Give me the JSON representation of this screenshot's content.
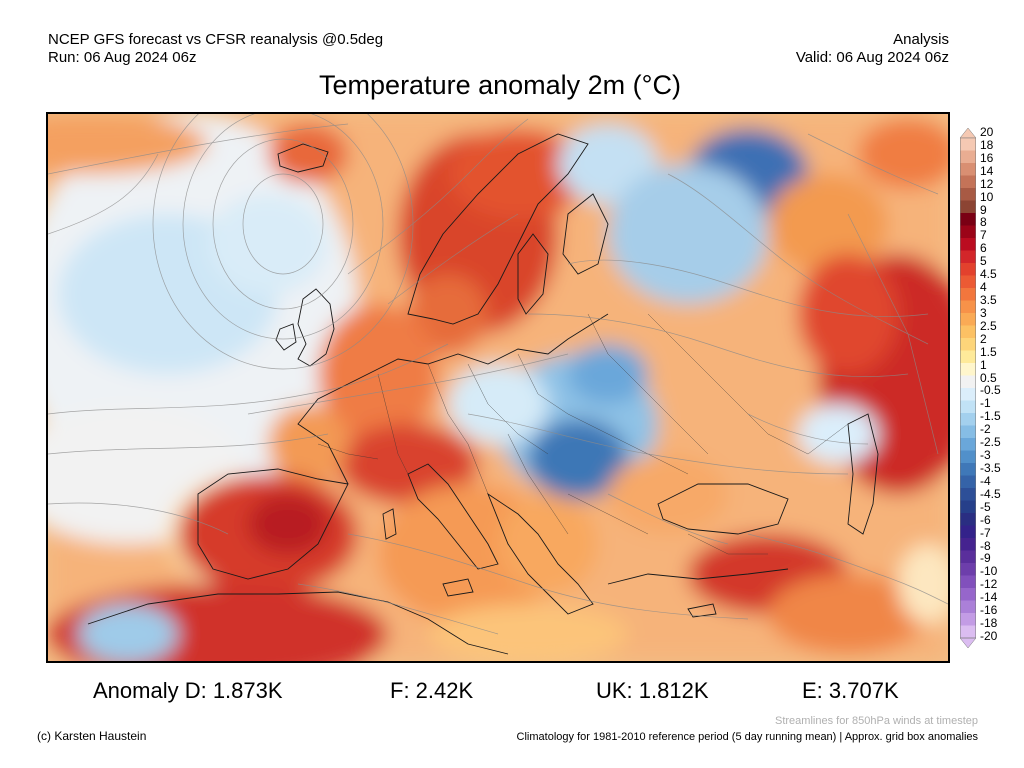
{
  "header": {
    "line1_left": "NCEP GFS forecast vs CFSR reanalysis @0.5deg",
    "line2_left": "Run: 06 Aug 2024 06z",
    "line1_right": "Analysis",
    "line2_right": "Valid: 06 Aug 2024 06z"
  },
  "title": "Temperature anomaly 2m (°C)",
  "legend": {
    "labels": [
      "20",
      "18",
      "16",
      "14",
      "12",
      "10",
      "9",
      "8",
      "7",
      "6",
      "5",
      "4.5",
      "4",
      "3.5",
      "3",
      "2.5",
      "2",
      "1.5",
      "1",
      "0.5",
      "-0.5",
      "-1",
      "-1.5",
      "-2",
      "-2.5",
      "-3",
      "-3.5",
      "-4",
      "-4.5",
      "-5",
      "-6",
      "-7",
      "-8",
      "-9",
      "-10",
      "-12",
      "-14",
      "-16",
      "-18",
      "-20"
    ],
    "colors": [
      "#f5c9b3",
      "#e9ad92",
      "#d98f72",
      "#c47358",
      "#a85a44",
      "#8c4433",
      "#7a0014",
      "#9b0418",
      "#bb0c20",
      "#d3262a",
      "#e3412d",
      "#ec5a34",
      "#f2763d",
      "#f79249",
      "#faaa55",
      "#fcc164",
      "#fdd57a",
      "#feea9a",
      "#fff6cc",
      "#f2f2f2",
      "#dbeefb",
      "#c1e2f6",
      "#a3d0ee",
      "#86bde5",
      "#6aa7da",
      "#5190ca",
      "#3f78b8",
      "#3563a8",
      "#2d4f98",
      "#263f8a",
      "#2a2e82",
      "#33228a",
      "#45238f",
      "#5a2f9c",
      "#6d3eab",
      "#8150bc",
      "#9666cb",
      "#ab80d8",
      "#c39ce5",
      "#dbbdf1"
    ]
  },
  "stats": {
    "d": "Anomaly D: 1.873K",
    "f": "F: 2.42K",
    "uk": "UK: 1.812K",
    "e": "E: 3.707K"
  },
  "footer": {
    "credit": "(c) Karsten Haustein",
    "streamlines": "Streamlines for 850hPa winds at timestep",
    "climatology": "Climatology for 1981-2010 reference period (5 day running mean) | Approx. grid box anomalies"
  }
}
